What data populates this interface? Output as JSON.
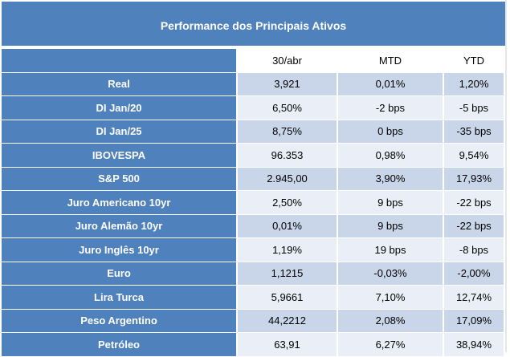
{
  "title": "Performance dos Principais Ativos",
  "columns": [
    "30/abr",
    "MTD",
    "YTD"
  ],
  "rows": [
    {
      "name": "Real",
      "values": [
        "3,921",
        "0,01%",
        "1,20%"
      ]
    },
    {
      "name": "DI Jan/20",
      "values": [
        "6,50%",
        "-2 bps",
        "-5 bps"
      ]
    },
    {
      "name": "DI Jan/25",
      "values": [
        "8,75%",
        "0 bps",
        "-35 bps"
      ]
    },
    {
      "name": "IBOVESPA",
      "values": [
        "96.353",
        "0,98%",
        "9,54%"
      ]
    },
    {
      "name": "S&P 500",
      "values": [
        "2.945,00",
        "3,90%",
        "17,93%"
      ]
    },
    {
      "name": "Juro Americano 10yr",
      "values": [
        "2,50%",
        "9 bps",
        "-22 bps"
      ]
    },
    {
      "name": "Juro Alemão 10yr",
      "values": [
        "0,01%",
        "9 bps",
        "-22 bps"
      ]
    },
    {
      "name": "Juro Inglês 10yr",
      "values": [
        "1,19%",
        "19 bps",
        "-8 bps"
      ]
    },
    {
      "name": "Euro",
      "values": [
        "1,1215",
        "-0,03%",
        "-2,00%"
      ]
    },
    {
      "name": "Lira Turca",
      "values": [
        "5,9661",
        "7,10%",
        "12,74%"
      ]
    },
    {
      "name": "Peso Argentino",
      "values": [
        "44,2212",
        "2,08%",
        "17,09%"
      ]
    },
    {
      "name": "Petróleo",
      "values": [
        "63,91",
        "6,27%",
        "38,94%"
      ]
    }
  ],
  "colors": {
    "header_blue": "#4f81bd",
    "band_dark": "#c9d5e9",
    "band_light": "#e9eef7"
  }
}
